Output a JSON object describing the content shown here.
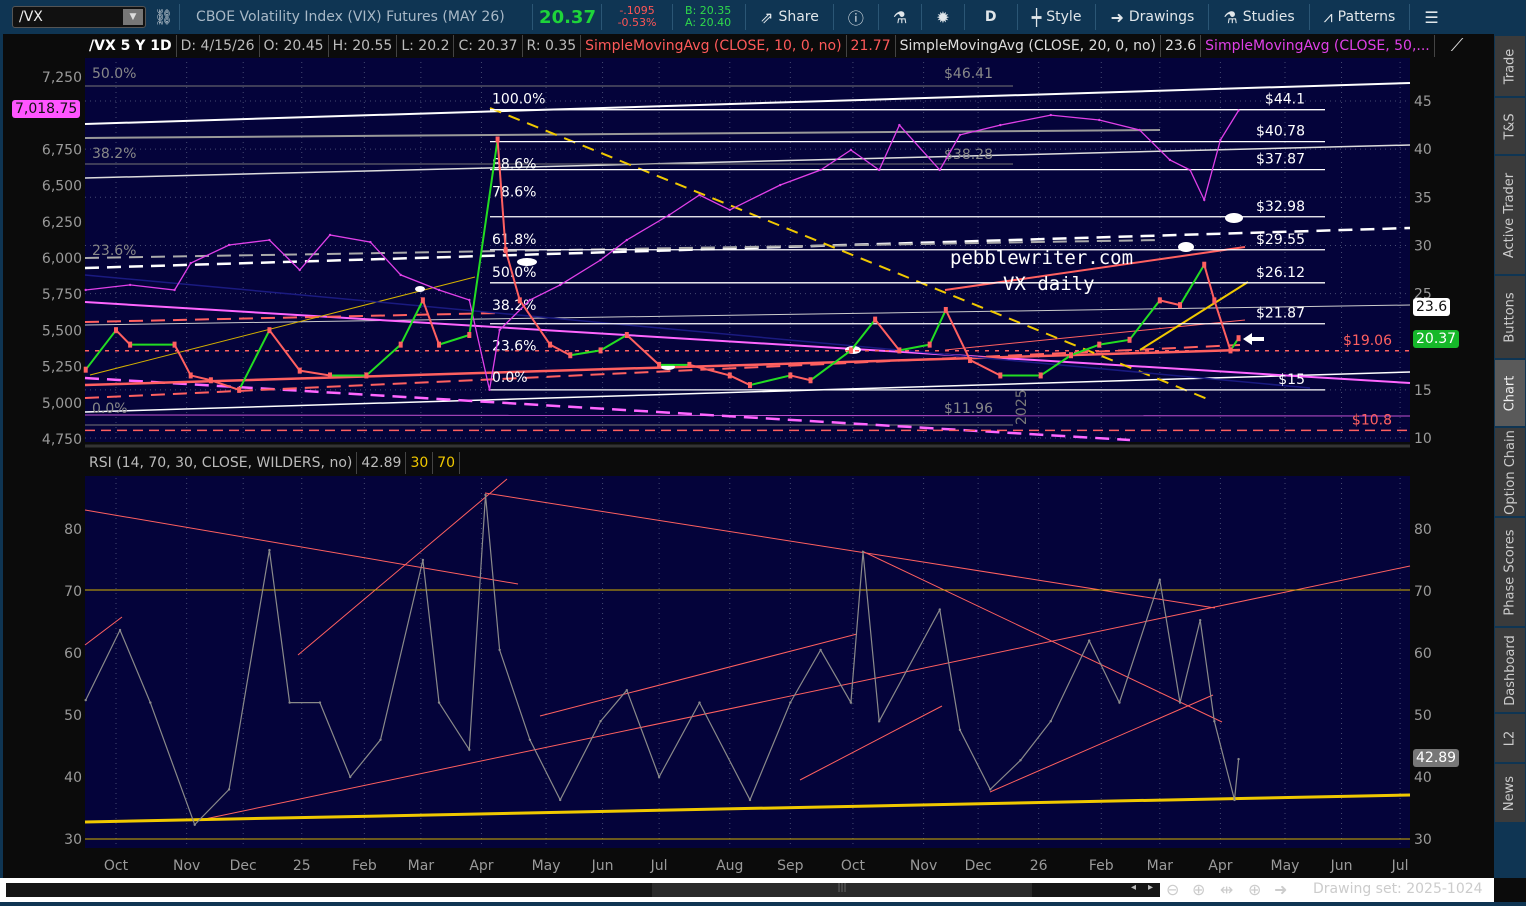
{
  "toolbar": {
    "symbol": "/VX",
    "description": "CBOE Volatility Index (VIX) Futures (MAY 26)",
    "last": "20.37",
    "change": "-.1095",
    "change_pct": "-0.53%",
    "bid": "B: 20.35",
    "ask": "A: 20.40",
    "share": "Share",
    "aggregation": "D",
    "style": "Style",
    "drawings": "Drawings",
    "studies": "Studies",
    "patterns": "Patterns"
  },
  "legend": {
    "title": "/VX 5 Y 1D",
    "date": "D: 4/15/26",
    "open": "O: 20.45",
    "high": "H: 20.55",
    "low": "L: 20.2",
    "close": "C: 20.37",
    "range": "R: 0.35",
    "sma10": "SimpleMovingAvg (CLOSE, 10, 0, no)",
    "sma10_val": "21.77",
    "sma20": "SimpleMovingAvg (CLOSE, 20, 0, no)",
    "sma20_val": "23.6",
    "sma50": "SimpleMovingAvg (CLOSE, 50,..."
  },
  "rsi_legend": {
    "label": "RSI (14, 70, 30, CLOSE, WILDERS, no)",
    "value": "42.89",
    "oversold": "30",
    "overbought": "70"
  },
  "price_boxes": {
    "spx": "7,018.75",
    "sma20": "23.6",
    "last": "20.37",
    "rsi": "42.89"
  },
  "watermark": {
    "line1": "pebblewriter.com",
    "line2": "VX daily",
    "year": "2025"
  },
  "sidebar": [
    "Trade",
    "T&S",
    "Active Trader",
    "Buttons",
    "Chart",
    "Option Chain",
    "Phase Scores",
    "Dashboard",
    "L2",
    "News"
  ],
  "sidebar_active": "Chart",
  "footer": {
    "drawing_set": "Drawing set: 2025-1024"
  },
  "colors": {
    "background": "#04033a",
    "vx": "#ff6060",
    "spx": "#e040e8",
    "up": "#22dd22",
    "rsi": "#8a8a8a",
    "trend_yellow": "#f0c800",
    "last_green": "#16b82a"
  },
  "chart_data": [
    {
      "type": "line",
      "title": "/VX 5 Y 1D",
      "x_ticks": [
        {
          "label": "Oct",
          "date": "2024-10-01"
        },
        {
          "label": "Nov",
          "date": "2024-11-05"
        },
        {
          "label": "Dec",
          "date": "2024-12-03"
        },
        {
          "label": "25",
          "date": "2025-01-01"
        },
        {
          "label": "Feb",
          "date": "2025-02-01"
        },
        {
          "label": "Mar",
          "date": "2025-03-01"
        },
        {
          "label": "Apr",
          "date": "2025-03-31"
        },
        {
          "label": "May",
          "date": "2025-05-02"
        },
        {
          "label": "Jun",
          "date": "2025-05-30"
        },
        {
          "label": "Jul",
          "date": "2025-06-27"
        },
        {
          "label": "Aug",
          "date": "2025-08-01"
        },
        {
          "label": "Sep",
          "date": "2025-08-31"
        },
        {
          "label": "Oct",
          "date": "2025-10-01"
        },
        {
          "label": "Nov",
          "date": "2025-11-05"
        },
        {
          "label": "Dec",
          "date": "2025-12-02"
        },
        {
          "label": "26",
          "date": "2026-01-01"
        },
        {
          "label": "Feb",
          "date": "2026-02-01"
        },
        {
          "label": "Mar",
          "date": "2026-03-02"
        },
        {
          "label": "Apr",
          "date": "2026-04-01"
        },
        {
          "label": "May",
          "date": "2026-05-03"
        },
        {
          "label": "Jun",
          "date": "2026-05-31"
        },
        {
          "label": "Jul",
          "date": "2026-06-29"
        }
      ],
      "y_right_ticks": [
        45,
        40,
        35,
        30,
        25,
        15,
        10
      ],
      "y_right_range": [
        10,
        45
      ],
      "y_left_ticks": [
        "7,250",
        "6,750",
        "6,500",
        "6,250",
        "6,000",
        "5,750",
        "5,500",
        "5,250",
        "5,000",
        "4,750"
      ],
      "y_left_range": [
        4750,
        7250
      ],
      "series": [
        {
          "name": "/VX",
          "axis": "right",
          "points": [
            [
              "2024-09-16",
              17.1
            ],
            [
              "2024-10-01",
              21.2
            ],
            [
              "2024-10-08",
              19.7
            ],
            [
              "2024-10-30",
              19.7
            ],
            [
              "2024-11-07",
              16.5
            ],
            [
              "2024-11-17",
              16.0
            ],
            [
              "2024-12-01",
              15.0
            ],
            [
              "2024-12-16",
              21.2
            ],
            [
              "2024-12-31",
              17.0
            ],
            [
              "2025-01-15",
              16.5
            ],
            [
              "2025-02-02",
              16.5
            ],
            [
              "2025-02-19",
              19.7
            ],
            [
              "2025-03-02",
              24.3
            ],
            [
              "2025-03-10",
              19.7
            ],
            [
              "2025-03-25",
              20.7
            ],
            [
              "2025-04-08",
              41.0
            ],
            [
              "2025-04-12",
              29.5
            ],
            [
              "2025-04-19",
              24.3
            ],
            [
              "2025-05-04",
              19.7
            ],
            [
              "2025-05-14",
              18.6
            ],
            [
              "2025-05-29",
              19.1
            ],
            [
              "2025-06-11",
              20.7
            ],
            [
              "2025-06-27",
              17.6
            ],
            [
              "2025-07-12",
              17.6
            ],
            [
              "2025-08-01",
              16.5
            ],
            [
              "2025-08-11",
              15.5
            ],
            [
              "2025-08-31",
              16.5
            ],
            [
              "2025-09-10",
              16.0
            ],
            [
              "2025-09-30",
              19.1
            ],
            [
              "2025-10-12",
              22.3
            ],
            [
              "2025-10-24",
              19.1
            ],
            [
              "2025-11-08",
              19.7
            ],
            [
              "2025-11-16",
              23.3
            ],
            [
              "2025-11-28",
              18.1
            ],
            [
              "2025-12-13",
              16.5
            ],
            [
              "2026-01-02",
              16.5
            ],
            [
              "2026-01-17",
              18.6
            ],
            [
              "2026-01-31",
              19.7
            ],
            [
              "2026-02-15",
              20.2
            ],
            [
              "2026-03-02",
              24.3
            ],
            [
              "2026-03-12",
              23.8
            ],
            [
              "2026-03-24",
              28.0
            ],
            [
              "2026-03-29",
              24.3
            ],
            [
              "2026-04-06",
              19.1
            ],
            [
              "2026-04-10",
              20.37
            ]
          ]
        },
        {
          "name": "SPX",
          "axis": "left",
          "points": [
            [
              "2024-09-16",
              5779
            ],
            [
              "2024-10-08",
              5814
            ],
            [
              "2024-10-30",
              5779
            ],
            [
              "2024-11-07",
              5965
            ],
            [
              "2024-11-26",
              6090
            ],
            [
              "2024-12-16",
              6124
            ],
            [
              "2024-12-31",
              5917
            ],
            [
              "2025-01-15",
              6159
            ],
            [
              "2025-02-04",
              6110
            ],
            [
              "2025-02-19",
              5883
            ],
            [
              "2025-03-10",
              5779
            ],
            [
              "2025-03-25",
              5710
            ],
            [
              "2025-04-04",
              5090
            ],
            [
              "2025-04-09",
              5503
            ],
            [
              "2025-04-24",
              5710
            ],
            [
              "2025-05-09",
              5814
            ],
            [
              "2025-05-29",
              5986
            ],
            [
              "2025-06-11",
              6124
            ],
            [
              "2025-07-02",
              6297
            ],
            [
              "2025-07-17",
              6435
            ],
            [
              "2025-08-01",
              6332
            ],
            [
              "2025-08-26",
              6504
            ],
            [
              "2025-09-15",
              6608
            ],
            [
              "2025-09-30",
              6746
            ],
            [
              "2025-10-14",
              6608
            ],
            [
              "2025-10-24",
              6918
            ],
            [
              "2025-11-13",
              6608
            ],
            [
              "2025-11-23",
              6850
            ],
            [
              "2025-12-13",
              6918
            ],
            [
              "2026-01-07",
              6987
            ],
            [
              "2026-01-31",
              6953
            ],
            [
              "2026-02-20",
              6884
            ],
            [
              "2026-03-07",
              6677
            ],
            [
              "2026-03-17",
              6608
            ],
            [
              "2026-03-24",
              6401
            ],
            [
              "2026-04-01",
              6815
            ],
            [
              "2026-04-10",
              7018.75
            ]
          ]
        }
      ],
      "fib_levels": [
        {
          "pct": "100.0%",
          "value": 44.1,
          "label": "$44.1"
        },
        {
          "pct": "88.6%",
          "value": 40.78,
          "label": "$40.78"
        },
        {
          "pct": "78.6%",
          "value": 37.87,
          "label": "$37.87"
        },
        {
          "pct": "61.8%",
          "value": 32.98,
          "label": "$32.98"
        },
        {
          "pct": "50.0%",
          "value": 29.55,
          "label": "$29.55"
        },
        {
          "pct": "38.2%",
          "value": 26.12,
          "label": "$26.12"
        },
        {
          "pct": "23.6%",
          "value": 21.87,
          "label": "$21.87"
        },
        {
          "pct": "0.0%",
          "value": 15,
          "label": "$15"
        }
      ],
      "levels": [
        {
          "value": 19.06,
          "label": "$19.06"
        },
        {
          "value": 10.8,
          "label": "$10.8"
        }
      ],
      "left_fib_labels": [
        "50.0%",
        "38.2%",
        "23.6%",
        "0.0%"
      ],
      "gray_labels": [
        "$46.41",
        "$38.28",
        "$11.96"
      ]
    },
    {
      "type": "line",
      "title": "RSI (14, 70, 30, CLOSE, WILDERS, no)",
      "y_ticks": [
        80,
        70,
        60,
        50,
        40,
        30
      ],
      "y_range": [
        30,
        80
      ],
      "series": [
        {
          "name": "RSI",
          "points": [
            [
              "2024-09-16",
              52.4
            ],
            [
              "2024-10-03",
              63.7
            ],
            [
              "2024-10-18",
              52.0
            ],
            [
              "2024-11-09",
              32.3
            ],
            [
              "2024-11-26",
              38.0
            ],
            [
              "2024-12-16",
              76.6
            ],
            [
              "2024-12-26",
              52.0
            ],
            [
              "2025-01-10",
              52.0
            ],
            [
              "2025-01-25",
              40.0
            ],
            [
              "2025-02-09",
              46.0
            ],
            [
              "2025-03-02",
              75.0
            ],
            [
              "2025-03-10",
              52.0
            ],
            [
              "2025-03-25",
              44.4
            ],
            [
              "2025-04-02",
              85.5
            ],
            [
              "2025-04-09",
              60.5
            ],
            [
              "2025-04-24",
              46.0
            ],
            [
              "2025-05-09",
              36.3
            ],
            [
              "2025-05-29",
              49.0
            ],
            [
              "2025-06-11",
              54.0
            ],
            [
              "2025-06-27",
              40.0
            ],
            [
              "2025-07-17",
              52.0
            ],
            [
              "2025-08-11",
              36.3
            ],
            [
              "2025-08-31",
              52.0
            ],
            [
              "2025-09-15",
              60.5
            ],
            [
              "2025-09-30",
              52.0
            ],
            [
              "2025-10-06",
              76.3
            ],
            [
              "2025-10-14",
              49.0
            ],
            [
              "2025-11-13",
              67.0
            ],
            [
              "2025-11-23",
              47.6
            ],
            [
              "2025-12-08",
              38.0
            ],
            [
              "2025-12-23",
              42.7
            ],
            [
              "2026-01-07",
              49.0
            ],
            [
              "2026-01-26",
              62.0
            ],
            [
              "2026-02-10",
              52.0
            ],
            [
              "2026-03-02",
              71.8
            ],
            [
              "2026-03-12",
              52.0
            ],
            [
              "2026-03-22",
              65.3
            ],
            [
              "2026-03-29",
              49.0
            ],
            [
              "2026-04-08",
              36.3
            ],
            [
              "2026-04-10",
              42.89
            ]
          ]
        }
      ]
    }
  ]
}
